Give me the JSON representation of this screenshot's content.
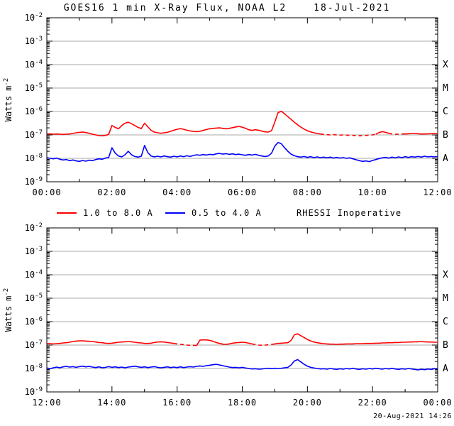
{
  "page": {
    "title": "GOES16 1 min X-Ray Flux, NOAA L2",
    "title_date": "18-Jul-2021",
    "generated_stamp": "20-Aug-2021 14:26",
    "background_color": "#ffffff"
  },
  "colors": {
    "long_channel": "#ff0000",
    "short_channel": "#0000ff",
    "grid": "#a8a8a8",
    "frame": "#000000",
    "text": "#000000"
  },
  "legend": {
    "series": [
      {
        "label": "1.0 to 8.0 A",
        "color": "#ff0000"
      },
      {
        "label": "0.5 to 4.0 A",
        "color": "#0000ff"
      }
    ],
    "note": "RHESSI Inoperative"
  },
  "chart_data": [
    {
      "type": "line",
      "title": "GOES16 1 min X-Ray Flux, NOAA L2, 18-Jul-2021, 00:00-12:00 UT",
      "xlabel": "",
      "y_axis_label": {
        "base": "Watts m",
        "exponent": "-2"
      },
      "grid": "horizontal-decade-gridlines",
      "x_range_hours": [
        0,
        12
      ],
      "x_minor_step_hours": 1,
      "x_ticks": [
        {
          "hour": 0,
          "label": "00:00"
        },
        {
          "hour": 2,
          "label": "02:00"
        },
        {
          "hour": 4,
          "label": "04:00"
        },
        {
          "hour": 6,
          "label": "06:00"
        },
        {
          "hour": 8,
          "label": "08:00"
        },
        {
          "hour": 10,
          "label": "10:00"
        },
        {
          "hour": 12,
          "label": "12:00"
        }
      ],
      "y_log10_range": [
        -9,
        -2
      ],
      "y_tick_exponents": [
        -2,
        -3,
        -4,
        -5,
        -6,
        -7,
        -8,
        -9
      ],
      "flare_class_labels": [
        {
          "label": "X",
          "log10_flux": -4
        },
        {
          "label": "M",
          "log10_flux": -5
        },
        {
          "label": "C",
          "log10_flux": -6
        },
        {
          "label": "B",
          "log10_flux": -7
        },
        {
          "label": "A",
          "log10_flux": -8
        }
      ],
      "series": [
        {
          "name": "1.0 to 8.0 A",
          "color": "#ff0000",
          "x_start_hour": 0.0,
          "x_step_hours": 0.1,
          "dashed_gap_ranges_hours": [
            [
              8.45,
              10.15
            ],
            [
              10.55,
              10.95
            ]
          ],
          "log10_values": [
            -6.95,
            -6.96,
            -6.97,
            -6.96,
            -6.97,
            -6.98,
            -6.97,
            -6.96,
            -6.94,
            -6.91,
            -6.89,
            -6.88,
            -6.9,
            -6.93,
            -6.97,
            -7.0,
            -7.03,
            -7.04,
            -7.02,
            -6.98,
            -6.6,
            -6.68,
            -6.74,
            -6.6,
            -6.5,
            -6.46,
            -6.52,
            -6.6,
            -6.68,
            -6.73,
            -6.5,
            -6.65,
            -6.8,
            -6.88,
            -6.91,
            -6.93,
            -6.91,
            -6.89,
            -6.85,
            -6.8,
            -6.76,
            -6.73,
            -6.76,
            -6.8,
            -6.83,
            -6.85,
            -6.86,
            -6.85,
            -6.81,
            -6.77,
            -6.74,
            -6.72,
            -6.71,
            -6.7,
            -6.72,
            -6.74,
            -6.72,
            -6.69,
            -6.66,
            -6.64,
            -6.67,
            -6.72,
            -6.78,
            -6.81,
            -6.78,
            -6.8,
            -6.84,
            -6.87,
            -6.88,
            -6.82,
            -6.45,
            -6.05,
            -5.99,
            -6.1,
            -6.22,
            -6.34,
            -6.46,
            -6.57,
            -6.67,
            -6.75,
            -6.82,
            -6.87,
            -6.91,
            -6.94,
            -6.96,
            -6.98,
            -6.99,
            -7.0,
            -6.99,
            -7.0,
            -7.01,
            -7.0,
            -7.01,
            -7.02,
            -7.02,
            -7.03,
            -7.04,
            -7.03,
            -7.02,
            -7.01,
            -7.0,
            -6.97,
            -6.9,
            -6.86,
            -6.89,
            -6.93,
            -6.96,
            -6.97,
            -6.97,
            -6.96,
            -6.96,
            -6.95,
            -6.94,
            -6.94,
            -6.95,
            -6.96,
            -6.96,
            -6.95,
            -6.95,
            -6.94,
            -6.95
          ]
        },
        {
          "name": "0.5 to 4.0 A",
          "color": "#0000ff",
          "x_start_hour": 0.0,
          "x_step_hours": 0.1,
          "dashed_gap_ranges_hours": [],
          "log10_values": [
            -7.97,
            -8.0,
            -8.02,
            -7.99,
            -8.04,
            -8.07,
            -8.05,
            -8.1,
            -8.07,
            -8.11,
            -8.13,
            -8.09,
            -8.12,
            -8.08,
            -8.1,
            -8.05,
            -8.02,
            -8.04,
            -7.99,
            -7.96,
            -7.55,
            -7.78,
            -7.9,
            -7.94,
            -7.85,
            -7.7,
            -7.85,
            -7.92,
            -7.95,
            -7.91,
            -7.45,
            -7.75,
            -7.9,
            -7.94,
            -7.91,
            -7.94,
            -7.9,
            -7.93,
            -7.95,
            -7.91,
            -7.94,
            -7.9,
            -7.93,
            -7.89,
            -7.92,
            -7.88,
            -7.85,
            -7.87,
            -7.84,
            -7.86,
            -7.83,
            -7.85,
            -7.81,
            -7.79,
            -7.82,
            -7.8,
            -7.83,
            -7.81,
            -7.84,
            -7.82,
            -7.85,
            -7.87,
            -7.84,
            -7.86,
            -7.83,
            -7.87,
            -7.9,
            -7.92,
            -7.9,
            -7.78,
            -7.48,
            -7.32,
            -7.38,
            -7.55,
            -7.7,
            -7.82,
            -7.89,
            -7.93,
            -7.95,
            -7.92,
            -7.96,
            -7.93,
            -7.97,
            -7.94,
            -7.97,
            -7.95,
            -7.98,
            -7.95,
            -7.99,
            -7.96,
            -7.99,
            -7.97,
            -8.0,
            -7.98,
            -8.02,
            -8.06,
            -8.1,
            -8.13,
            -8.11,
            -8.14,
            -8.09,
            -8.05,
            -8.01,
            -7.98,
            -7.96,
            -7.99,
            -7.95,
            -7.98,
            -7.94,
            -7.97,
            -7.93,
            -7.96,
            -7.93,
            -7.95,
            -7.92,
            -7.95,
            -7.91,
            -7.94,
            -7.92,
            -7.94,
            -7.92
          ]
        }
      ]
    },
    {
      "type": "line",
      "title": "GOES16 1 min X-Ray Flux, NOAA L2, 18-Jul-2021, 12:00-24:00 UT",
      "xlabel": "",
      "y_axis_label": {
        "base": "Watts m",
        "exponent": "-2"
      },
      "grid": "horizontal-decade-gridlines",
      "x_range_hours": [
        12,
        24
      ],
      "x_minor_step_hours": 1,
      "x_ticks": [
        {
          "hour": 12,
          "label": "12:00"
        },
        {
          "hour": 14,
          "label": "14:00"
        },
        {
          "hour": 16,
          "label": "16:00"
        },
        {
          "hour": 18,
          "label": "18:00"
        },
        {
          "hour": 20,
          "label": "20:00"
        },
        {
          "hour": 22,
          "label": "22:00"
        },
        {
          "hour": 24,
          "label": "00:00"
        }
      ],
      "y_log10_range": [
        -9,
        -2
      ],
      "y_tick_exponents": [
        -2,
        -3,
        -4,
        -5,
        -6,
        -7,
        -8,
        -9
      ],
      "flare_class_labels": [
        {
          "label": "X",
          "log10_flux": -4
        },
        {
          "label": "M",
          "log10_flux": -5
        },
        {
          "label": "C",
          "log10_flux": -6
        },
        {
          "label": "B",
          "log10_flux": -7
        },
        {
          "label": "A",
          "log10_flux": -8
        }
      ],
      "series": [
        {
          "name": "1.0 to 8.0 A",
          "color": "#ff0000",
          "x_start_hour": 12.0,
          "x_step_hours": 0.1,
          "dashed_gap_ranges_hours": [
            [
              15.95,
              16.65
            ],
            [
              18.35,
              18.95
            ]
          ],
          "log10_values": [
            -6.93,
            -6.94,
            -6.95,
            -6.94,
            -6.93,
            -6.91,
            -6.9,
            -6.88,
            -6.85,
            -6.83,
            -6.82,
            -6.82,
            -6.83,
            -6.84,
            -6.85,
            -6.87,
            -6.89,
            -6.9,
            -6.92,
            -6.93,
            -6.92,
            -6.9,
            -6.88,
            -6.87,
            -6.86,
            -6.85,
            -6.86,
            -6.88,
            -6.9,
            -6.91,
            -6.93,
            -6.93,
            -6.92,
            -6.89,
            -6.87,
            -6.86,
            -6.87,
            -6.89,
            -6.91,
            -6.93,
            -6.95,
            -6.97,
            -6.98,
            -7.0,
            -7.01,
            -7.01,
            -7.02,
            -6.79,
            -6.78,
            -6.78,
            -6.8,
            -6.84,
            -6.89,
            -6.93,
            -6.96,
            -6.97,
            -6.95,
            -6.92,
            -6.9,
            -6.89,
            -6.88,
            -6.89,
            -6.92,
            -6.95,
            -6.98,
            -7.0,
            -7.01,
            -7.0,
            -6.99,
            -6.97,
            -6.95,
            -6.93,
            -6.92,
            -6.91,
            -6.9,
            -6.8,
            -6.56,
            -6.52,
            -6.6,
            -6.68,
            -6.76,
            -6.82,
            -6.87,
            -6.9,
            -6.92,
            -6.94,
            -6.95,
            -6.96,
            -6.96,
            -6.97,
            -6.96,
            -6.96,
            -6.95,
            -6.95,
            -6.95,
            -6.94,
            -6.94,
            -6.94,
            -6.93,
            -6.93,
            -6.93,
            -6.92,
            -6.92,
            -6.91,
            -6.91,
            -6.9,
            -6.9,
            -6.89,
            -6.89,
            -6.88,
            -6.88,
            -6.87,
            -6.87,
            -6.86,
            -6.86,
            -6.85,
            -6.86,
            -6.87,
            -6.87,
            -6.88,
            -6.88
          ]
        },
        {
          "name": "0.5 to 4.0 A",
          "color": "#0000ff",
          "x_start_hour": 12.0,
          "x_step_hours": 0.1,
          "dashed_gap_ranges_hours": [],
          "log10_values": [
            -7.98,
            -8.01,
            -7.97,
            -7.94,
            -7.97,
            -7.93,
            -7.91,
            -7.94,
            -7.92,
            -7.95,
            -7.92,
            -7.9,
            -7.93,
            -7.91,
            -7.94,
            -7.96,
            -7.93,
            -7.97,
            -7.95,
            -7.92,
            -7.95,
            -7.93,
            -7.96,
            -7.94,
            -7.97,
            -7.94,
            -7.92,
            -7.9,
            -7.93,
            -7.95,
            -7.93,
            -7.96,
            -7.94,
            -7.92,
            -7.95,
            -7.97,
            -7.95,
            -7.93,
            -7.96,
            -7.94,
            -7.96,
            -7.93,
            -7.96,
            -7.94,
            -7.92,
            -7.94,
            -7.91,
            -7.89,
            -7.91,
            -7.88,
            -7.86,
            -7.84,
            -7.82,
            -7.85,
            -7.88,
            -7.91,
            -7.94,
            -7.96,
            -7.95,
            -7.97,
            -7.95,
            -7.98,
            -8.0,
            -8.02,
            -8.01,
            -8.03,
            -8.02,
            -8.0,
            -7.99,
            -8.01,
            -7.99,
            -8.0,
            -7.99,
            -7.97,
            -7.95,
            -7.85,
            -7.68,
            -7.62,
            -7.72,
            -7.82,
            -7.9,
            -7.95,
            -7.98,
            -8.0,
            -8.02,
            -8.01,
            -8.03,
            -8.0,
            -8.02,
            -8.04,
            -8.01,
            -8.03,
            -8.0,
            -8.02,
            -7.99,
            -8.02,
            -8.04,
            -8.01,
            -8.03,
            -8.0,
            -8.02,
            -7.99,
            -8.01,
            -8.03,
            -8.0,
            -8.02,
            -7.99,
            -8.02,
            -8.04,
            -8.01,
            -8.03,
            -8.0,
            -8.02,
            -8.04,
            -8.06,
            -8.03,
            -8.05,
            -8.02,
            -8.04,
            -8.01,
            -8.0
          ]
        }
      ]
    }
  ]
}
